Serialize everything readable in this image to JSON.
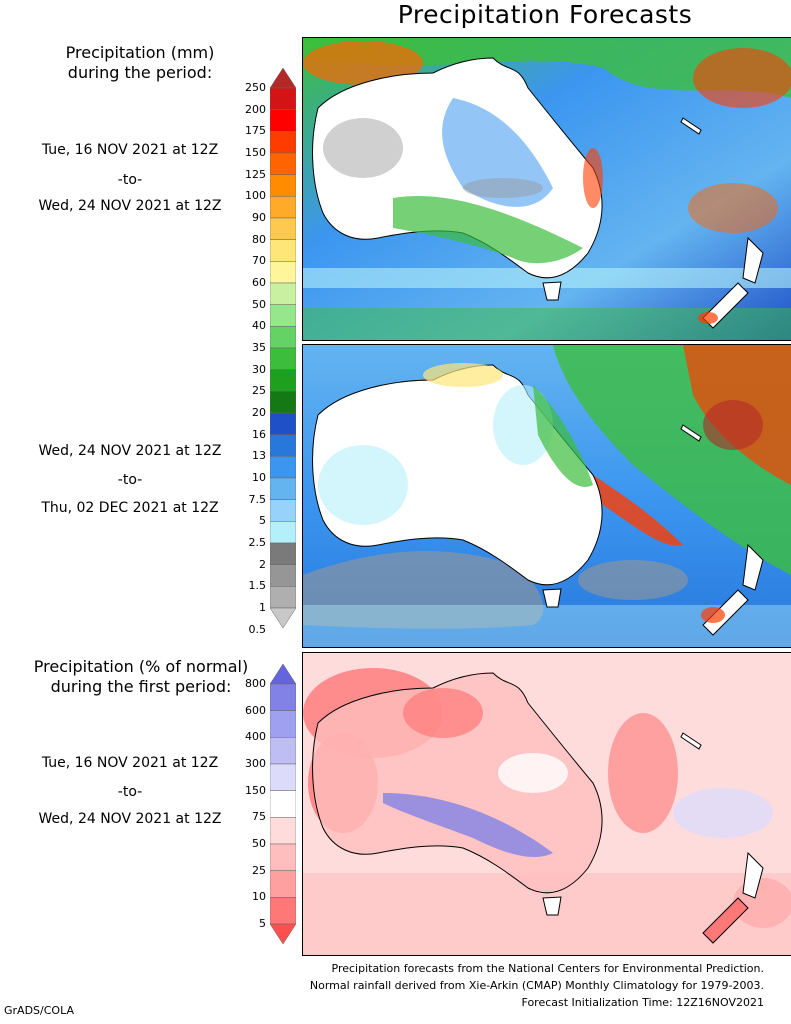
{
  "title": "Precipitation Forecasts",
  "legend_mm": {
    "header": [
      "Precipitation (mm)",
      "during the period:"
    ],
    "levels": [
      "250",
      "200",
      "175",
      "150",
      "125",
      "100",
      "90",
      "80",
      "70",
      "60",
      "50",
      "40",
      "35",
      "30",
      "25",
      "20",
      "16",
      "13",
      "10",
      "7.5",
      "5",
      "2.5",
      "2",
      "1.5",
      "1",
      "0.5"
    ],
    "colors": [
      "#b42828",
      "#d21414",
      "#ff0000",
      "#ff3c00",
      "#ff6400",
      "#ff8c00",
      "#ffaa28",
      "#ffc850",
      "#ffe678",
      "#fff59b",
      "#c8f0a0",
      "#96e68c",
      "#64d264",
      "#3cbe3c",
      "#1ea01e",
      "#147814",
      "#1e50c8",
      "#2878dc",
      "#3c96f0",
      "#64b4f0",
      "#96d2fa",
      "#b4f0fa",
      "#7a7a7a",
      "#969696",
      "#afafaf",
      "#c8c8c8"
    ]
  },
  "period1": {
    "start": "Tue, 16 NOV 2021 at 12Z",
    "sep": "-to-",
    "end": "Wed, 24 NOV 2021 at 12Z"
  },
  "period2": {
    "start": "Wed, 24 NOV 2021 at 12Z",
    "sep": "-to-",
    "end": "Thu, 02 DEC 2021 at 12Z"
  },
  "legend_pct": {
    "header": [
      "Precipitation (% of normal)",
      "during the first period:"
    ],
    "levels": [
      "800",
      "600",
      "400",
      "300",
      "150",
      "75",
      "50",
      "25",
      "10",
      "5"
    ],
    "colors": [
      "#6464dc",
      "#8282e6",
      "#a0a0f0",
      "#bebef5",
      "#dcdcfa",
      "#ffffff",
      "#ffdcdc",
      "#ffbebe",
      "#ffa0a0",
      "#ff7878",
      "#ff5050"
    ]
  },
  "period3": {
    "start": "Tue, 16 NOV 2021 at 12Z",
    "sep": "-to-",
    "end": "Wed, 24 NOV 2021 at 12Z"
  },
  "footer": [
    "Precipitation forecasts from the National Centers for Environmental Prediction.",
    "Normal rainfall derived from Xie-Arkin (CMAP) Monthly Climatology for 1979-2003.",
    "Forecast Initialization Time: 12Z16NOV2021"
  ],
  "credit": "GrADS/COLA",
  "map_colors": {
    "land": "#ffffff",
    "coast": "#000000",
    "ocean_light": "#b4f0fa",
    "ocean_blue": "#3c96f0",
    "green": "#3cbe3c",
    "red": "#ff3c00",
    "grey": "#969696",
    "pct_red": "#ff7878",
    "pct_blue": "#a0a0f0"
  }
}
